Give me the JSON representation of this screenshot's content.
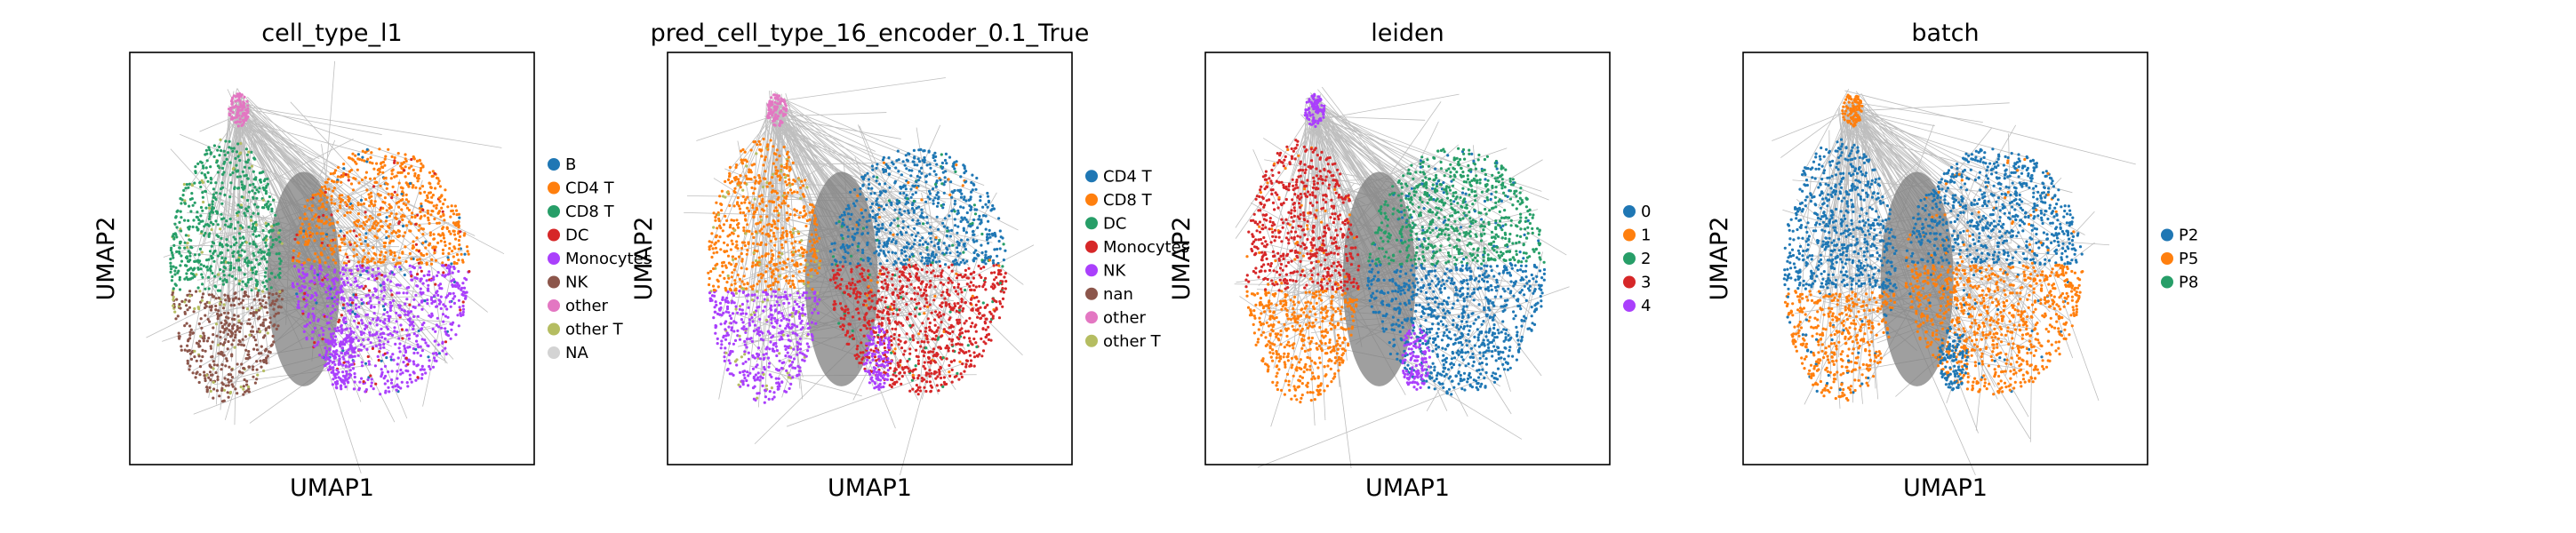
{
  "chart_data": [
    {
      "type": "scatter",
      "title": "cell_type_l1",
      "xlabel": "UMAP1",
      "ylabel": "UMAP2",
      "grid": false,
      "legend_position": "right",
      "legend": [
        {
          "name": "B",
          "color": "#1f77b4"
        },
        {
          "name": "CD4 T",
          "color": "#ff7f0e"
        },
        {
          "name": "CD8 T",
          "color": "#279e68"
        },
        {
          "name": "DC",
          "color": "#d62728"
        },
        {
          "name": "Monocytes",
          "color": "#aa40fc"
        },
        {
          "name": "NK",
          "color": "#8c564b"
        },
        {
          "name": "other",
          "color": "#e377c2"
        },
        {
          "name": "other T",
          "color": "#b5bd61"
        },
        {
          "name": "NA",
          "color": "#d3d3d3"
        }
      ]
    },
    {
      "type": "scatter",
      "title": "pred_cell_type_16_encoder_0.1_True",
      "xlabel": "UMAP1",
      "ylabel": "UMAP2",
      "grid": false,
      "legend_position": "right",
      "legend": [
        {
          "name": "CD4 T",
          "color": "#1f77b4"
        },
        {
          "name": "CD8 T",
          "color": "#ff7f0e"
        },
        {
          "name": "DC",
          "color": "#279e68"
        },
        {
          "name": "Monocytes",
          "color": "#d62728"
        },
        {
          "name": "NK",
          "color": "#aa40fc"
        },
        {
          "name": "nan",
          "color": "#8c564b"
        },
        {
          "name": "other",
          "color": "#e377c2"
        },
        {
          "name": "other T",
          "color": "#b5bd61"
        }
      ]
    },
    {
      "type": "scatter",
      "title": "leiden",
      "xlabel": "UMAP1",
      "ylabel": "UMAP2",
      "grid": false,
      "legend_position": "right",
      "legend": [
        {
          "name": "0",
          "color": "#1f77b4"
        },
        {
          "name": "1",
          "color": "#ff7f0e"
        },
        {
          "name": "2",
          "color": "#279e68"
        },
        {
          "name": "3",
          "color": "#d62728"
        },
        {
          "name": "4",
          "color": "#aa40fc"
        }
      ]
    },
    {
      "type": "scatter",
      "title": "batch",
      "xlabel": "UMAP1",
      "ylabel": "UMAP2",
      "grid": false,
      "legend_position": "right",
      "legend": [
        {
          "name": "P2",
          "color": "#1f77b4"
        },
        {
          "name": "P5",
          "color": "#ff7f0e"
        },
        {
          "name": "P8",
          "color": "#279e68"
        }
      ]
    }
  ]
}
